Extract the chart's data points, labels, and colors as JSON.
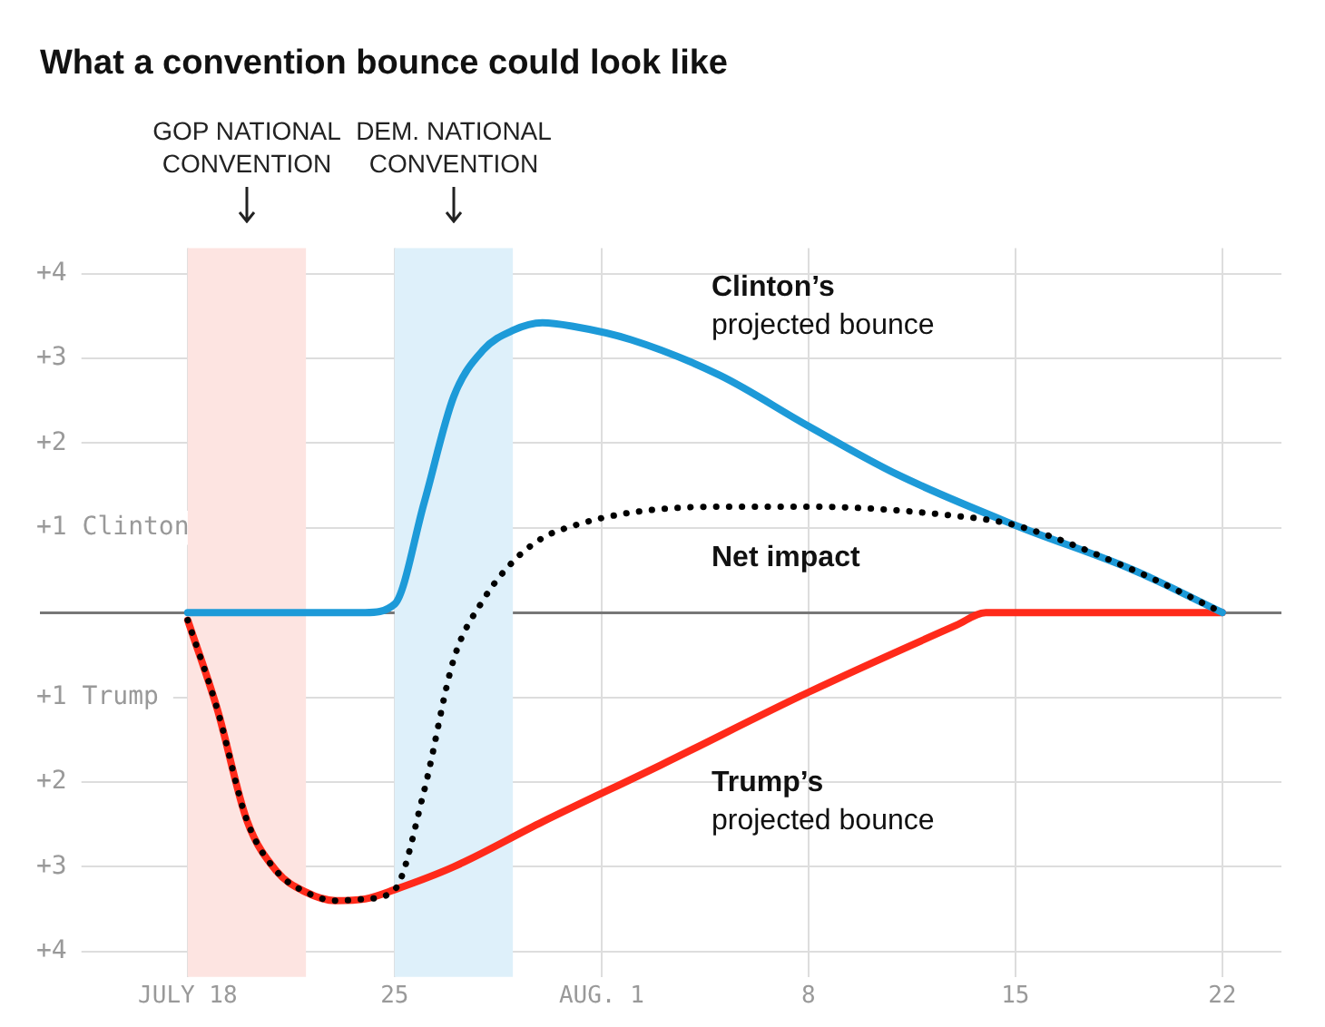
{
  "chart_data": {
    "type": "line",
    "title": "What a convention bounce could look like",
    "xlim": [
      "--07-13",
      "--08-24"
    ],
    "xticks": [
      {
        "value": "--07-18",
        "label": "JULY 18"
      },
      {
        "value": "--07-25",
        "label": "25"
      },
      {
        "value": "--08-01",
        "label": "AUG. 1"
      },
      {
        "value": "--08-08",
        "label": "8"
      },
      {
        "value": "--08-15",
        "label": "15"
      },
      {
        "value": "--08-22",
        "label": "22"
      }
    ],
    "ylim": [
      -4.3,
      4.3
    ],
    "yticks": [
      {
        "value": 4,
        "label": "+4"
      },
      {
        "value": 3,
        "label": "+3"
      },
      {
        "value": 2,
        "label": "+2"
      },
      {
        "value": 1,
        "label": "+1 Clinton"
      },
      {
        "value": 0,
        "label": null
      },
      {
        "value": -1,
        "label": "+1 Trump"
      },
      {
        "value": -2,
        "label": "+2"
      },
      {
        "value": -3,
        "label": "+3"
      },
      {
        "value": -4,
        "label": "+4"
      }
    ],
    "grid": true,
    "legend": false,
    "marker": "none",
    "bands": [
      {
        "axis": "x",
        "from": "--07-18",
        "to": "--07-22",
        "color": "#fde4e1"
      },
      {
        "axis": "x",
        "from": "--07-25",
        "to": "--07-29",
        "color": "#def0fa"
      }
    ],
    "annotations": [
      "GOP NATIONAL\nCONVENTION",
      "DEM. NATIONAL\nCONVENTION"
    ],
    "series": [
      {
        "name": "Clinton’s\nprojected bounce",
        "color": "#1d9ad8",
        "line_style": "solid",
        "x": [
          "--07-18",
          "--07-24",
          "--07-25",
          "--07-26",
          "--07-27",
          "--07-28",
          "--07-29",
          "--07-30",
          "--07-31",
          "--08-02",
          "--08-05",
          "--08-08",
          "--08-11",
          "--08-15",
          "--08-19",
          "--08-22"
        ],
        "values": [
          0,
          0,
          0.1,
          1.3,
          2.55,
          3.1,
          3.33,
          3.42,
          3.38,
          3.22,
          2.8,
          2.2,
          1.63,
          1.03,
          0.5,
          0
        ]
      },
      {
        "name": "Trump’s\nprojected bounce",
        "color": "#ff2a1a",
        "line_style": "solid",
        "x": [
          "--07-18",
          "--07-19",
          "--07-20",
          "--07-21",
          "--07-22",
          "--07-23",
          "--07-24",
          "--07-25",
          "--07-27",
          "--07-30",
          "--08-03",
          "--08-08",
          "--08-13",
          "--08-14",
          "--08-22"
        ],
        "values": [
          -0.09,
          -1.14,
          -2.45,
          -3.05,
          -3.3,
          -3.4,
          -3.38,
          -3.27,
          -3.0,
          -2.47,
          -1.8,
          -0.94,
          -0.15,
          0,
          0
        ]
      },
      {
        "name": "Net impact",
        "color": "#000000",
        "line_style": "dotted",
        "x": [
          "--07-18",
          "--07-19",
          "--07-20",
          "--07-21",
          "--07-22",
          "--07-23",
          "--07-24",
          "--07-25",
          "--07-26",
          "--07-27",
          "--07-28",
          "--07-29",
          "--07-30",
          "--07-31",
          "--08-02",
          "--08-05",
          "--08-08",
          "--08-13",
          "--08-15",
          "--08-19",
          "--08-22"
        ],
        "values": [
          -0.09,
          -1.14,
          -2.45,
          -3.05,
          -3.3,
          -3.4,
          -3.38,
          -3.27,
          -2.1,
          -0.55,
          0.15,
          0.6,
          0.88,
          1.02,
          1.18,
          1.25,
          1.25,
          1.14,
          1.03,
          0.5,
          0
        ]
      }
    ]
  }
}
